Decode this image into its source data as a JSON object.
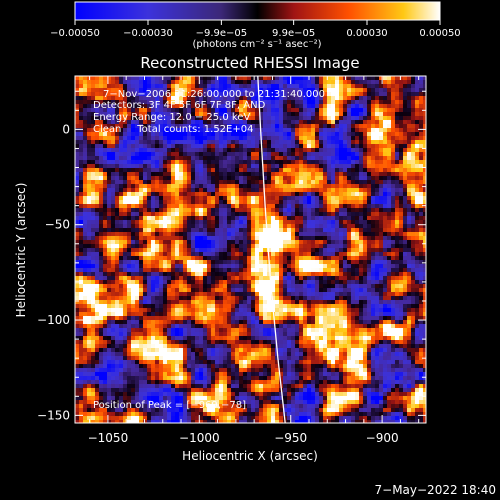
{
  "chart_data": {
    "type": "heatmap",
    "title": "Reconstructed RHESSI Image",
    "xlabel": "Heliocentric X (arcsec)",
    "ylabel": "Heliocentric Y (arcsec)",
    "xlim": [
      -1068,
      -876
    ],
    "ylim": [
      -154,
      28
    ],
    "x_ticks": [
      -1050,
      -1000,
      -950,
      -900
    ],
    "y_ticks": [
      0,
      -50,
      -100,
      -150
    ],
    "x_tick_labels": [
      "−1050",
      "−1000",
      "−950",
      "−900"
    ],
    "y_tick_labels": [
      "0",
      "−50",
      "−100",
      "−150"
    ],
    "colorbar": {
      "min": -0.0005,
      "max": 0.0005,
      "ticks": [
        -0.0005,
        -0.0003,
        -9.9e-05,
        9.9e-05,
        0.0003,
        0.0005
      ],
      "tick_labels": [
        "−0.00050",
        "−0.00030",
        "−9.9e−05",
        "9.9e−05",
        "0.00030",
        "0.00050"
      ],
      "unit_label": "(photons cm⁻² s⁻¹ asec⁻²)",
      "colors": [
        "#0000ff",
        "#5a28c8",
        "#3c2878",
        "#000000",
        "#a01414",
        "#ff5000",
        "#ffc814",
        "#ffffff"
      ]
    },
    "annotations": {
      "time_range": "7−Nov−2006 21:26:00.000 to 21:31:40.000",
      "detectors": "Detectors: 3F 4F 5F 6F 7F 8F, AND",
      "energy": "Energy Range: 12.0 − 25.0 keV",
      "clean": "Clean     Total counts: 1.52E+04",
      "peak": "Position of Peak = [−969,−78]"
    },
    "peak": {
      "x": -969,
      "y": -78
    },
    "limb": [
      [
        -968.0,
        28
      ],
      [
        -966.5,
        0
      ],
      [
        -964.0,
        -40
      ],
      [
        -961.0,
        -80
      ],
      [
        -957.0,
        -120
      ],
      [
        -953.0,
        -154
      ]
    ]
  },
  "footer": {
    "timestamp": "7−May−2022 18:40"
  }
}
